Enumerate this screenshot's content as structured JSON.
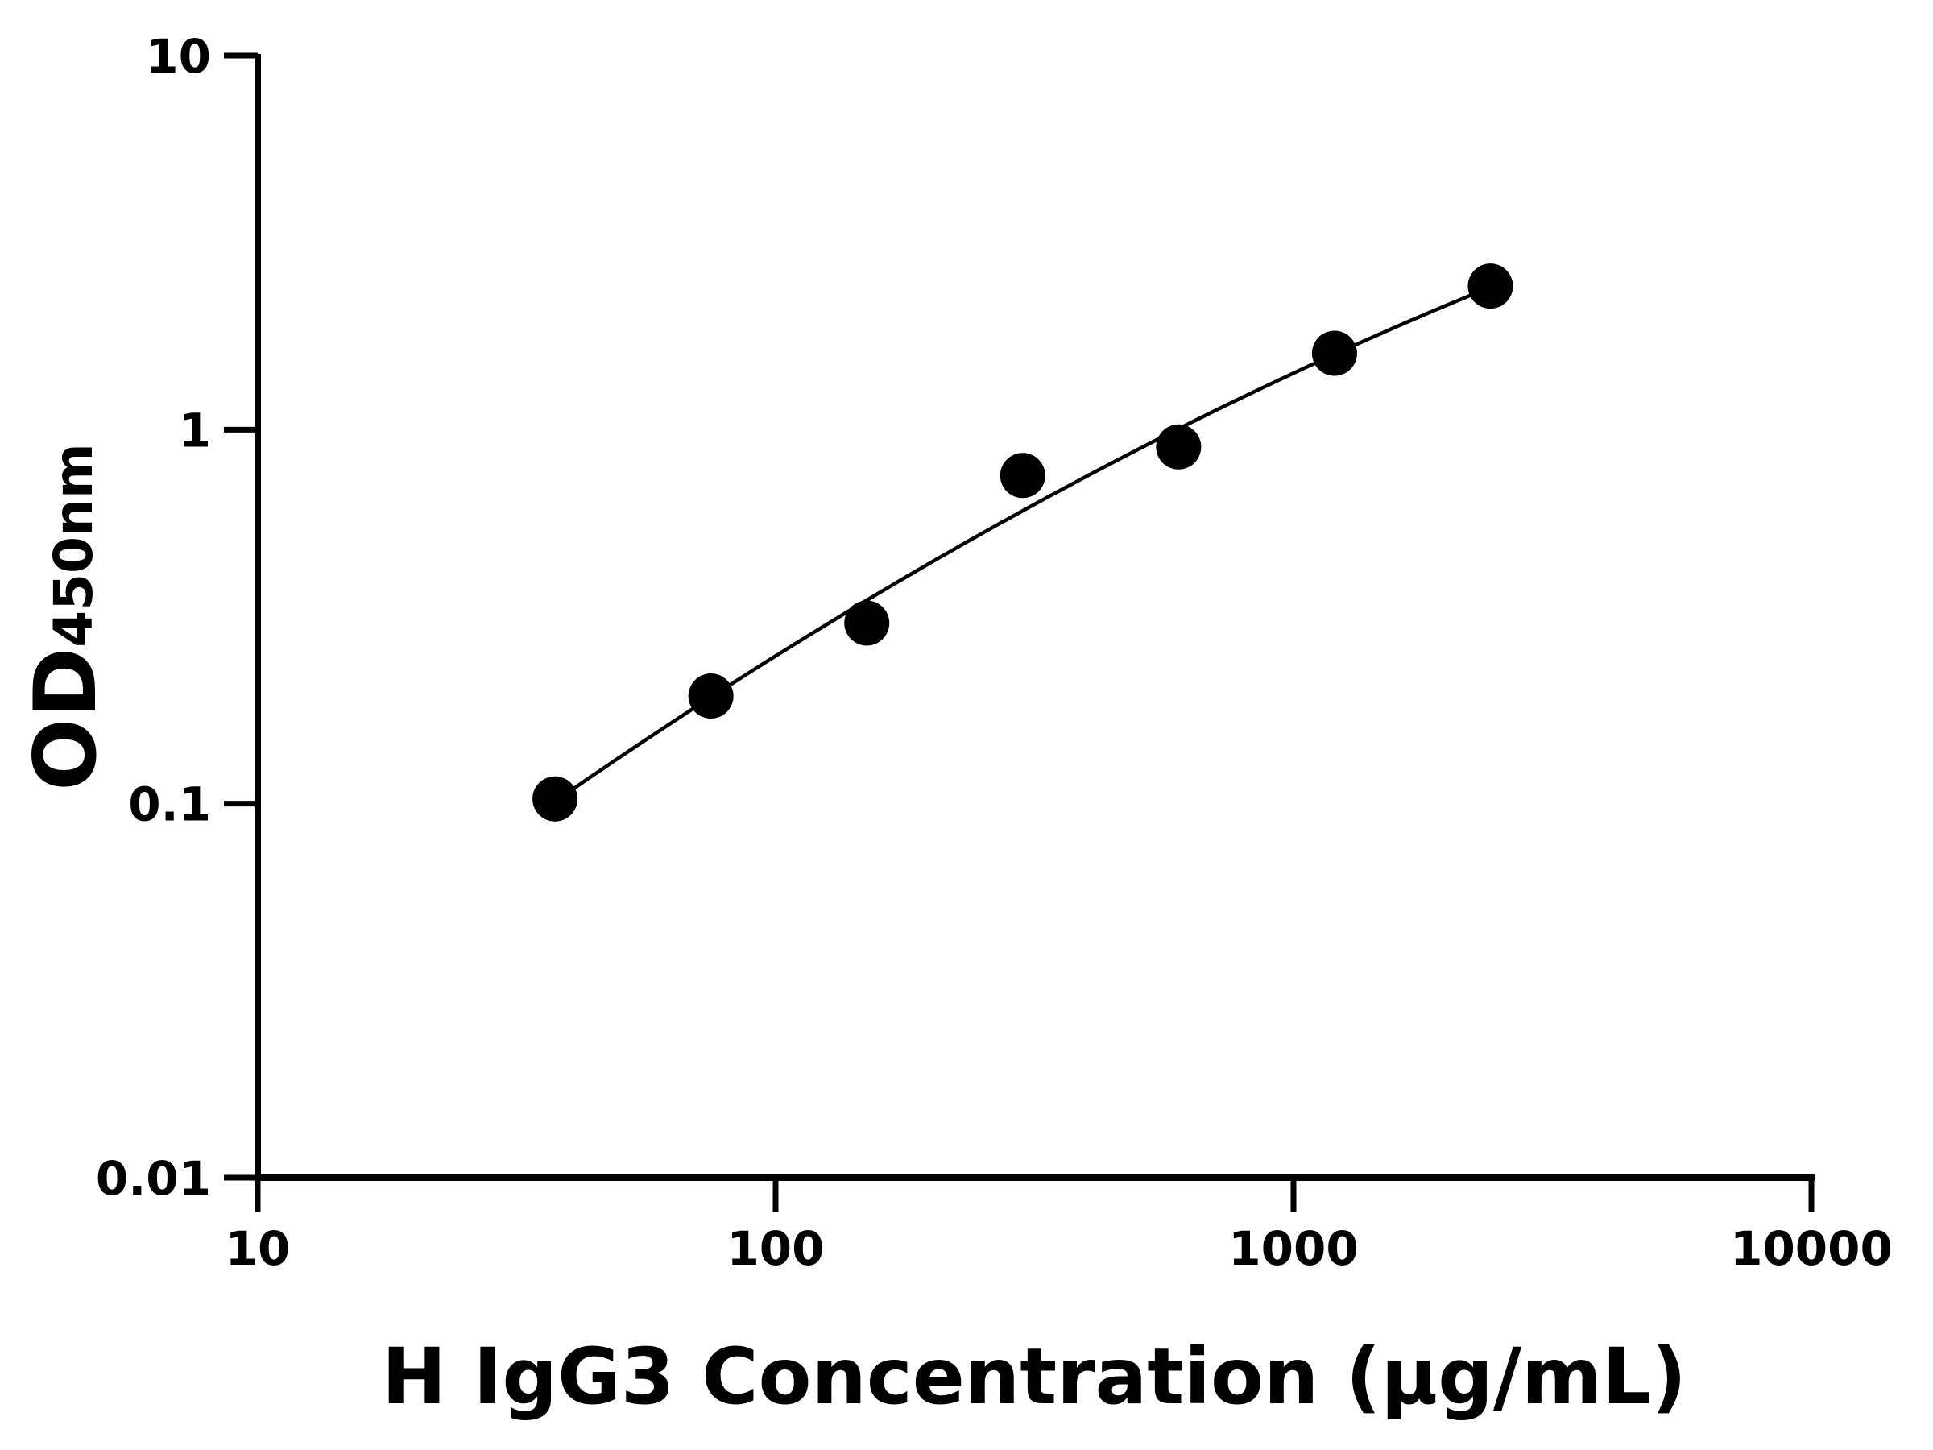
{
  "chart_data": {
    "type": "scatter",
    "title": "",
    "xlabel": "H IgG3 Concentration (μg/mL)",
    "ylabel_main": "OD",
    "ylabel_sub": "450nm",
    "x_scale": "log",
    "y_scale": "log",
    "xlim": [
      10,
      10000
    ],
    "ylim": [
      0.01,
      10
    ],
    "x_ticks": [
      10,
      100,
      1000,
      10000
    ],
    "x_tick_labels": [
      "10",
      "100",
      "1000",
      "10000"
    ],
    "y_ticks": [
      0.01,
      0.1,
      1,
      10
    ],
    "y_tick_labels": [
      "0.01",
      "0.1",
      "1",
      "10"
    ],
    "grid": false,
    "legend": "none",
    "series": [
      {
        "x": [
          37.5,
          75,
          150,
          300,
          600,
          1200,
          2400
        ],
        "y": [
          0.103,
          0.194,
          0.304,
          0.754,
          0.899,
          1.6,
          2.42
        ],
        "marker": "filled-circle",
        "color": "#000000",
        "fit_line": true
      }
    ]
  }
}
